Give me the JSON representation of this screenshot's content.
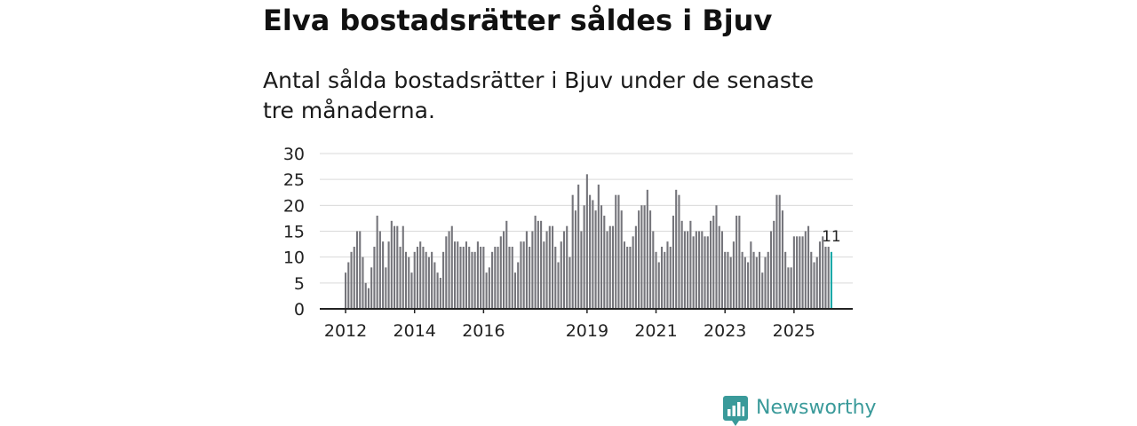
{
  "headline": "Elva bostadsrätter såldes i Bjuv",
  "subtitle": "Antal sålda bostadsrätter i Bjuv under de senaste tre månaderna.",
  "brand": {
    "name": "Newsworthy",
    "icon": "newsworthy-logo-icon",
    "color": "#3a9a9a"
  },
  "colors": {
    "bar": "#75757b",
    "highlight": "#1aa8a8",
    "grid": "#d9d9d9",
    "axis": "#222222"
  },
  "chart_data": {
    "type": "bar",
    "title": "Antal sålda bostadsrätter i Bjuv",
    "xlabel": "",
    "ylabel": "",
    "ylim": [
      0,
      30
    ],
    "yticks": [
      0,
      5,
      10,
      15,
      20,
      25,
      30
    ],
    "x_tick_labels": [
      {
        "label": "2012",
        "index": 0
      },
      {
        "label": "2014",
        "index": 24
      },
      {
        "label": "2016",
        "index": 48
      },
      {
        "label": "2019",
        "index": 84
      },
      {
        "label": "2021",
        "index": 108
      },
      {
        "label": "2023",
        "index": 132
      },
      {
        "label": "2025",
        "index": 156
      }
    ],
    "start": "2012-01",
    "values": [
      7,
      9,
      11,
      12,
      15,
      15,
      10,
      5,
      4,
      8,
      12,
      18,
      15,
      13,
      8,
      13,
      17,
      16,
      16,
      12,
      16,
      11,
      10,
      7,
      11,
      12,
      13,
      12,
      11,
      10,
      11,
      9,
      7,
      6,
      11,
      14,
      15,
      16,
      13,
      13,
      12,
      12,
      13,
      12,
      11,
      11,
      13,
      12,
      12,
      7,
      8,
      11,
      12,
      12,
      14,
      15,
      17,
      12,
      12,
      7,
      9,
      13,
      13,
      15,
      12,
      15,
      18,
      17,
      17,
      13,
      15,
      16,
      16,
      12,
      9,
      13,
      15,
      16,
      10,
      22,
      19,
      24,
      15,
      20,
      26,
      22,
      21,
      19,
      24,
      20,
      18,
      15,
      16,
      16,
      22,
      22,
      19,
      13,
      12,
      12,
      14,
      16,
      19,
      20,
      20,
      23,
      19,
      15,
      11,
      9,
      12,
      11,
      13,
      12,
      18,
      23,
      22,
      17,
      15,
      15,
      17,
      14,
      15,
      15,
      15,
      14,
      14,
      17,
      18,
      20,
      16,
      15,
      11,
      11,
      10,
      13,
      18,
      18,
      11,
      10,
      9,
      13,
      11,
      10,
      11,
      7,
      10,
      11,
      15,
      17,
      22,
      22,
      19,
      11,
      8,
      8,
      14,
      14,
      14,
      14,
      15,
      16,
      11,
      9,
      10,
      13,
      14,
      12,
      12,
      11
    ],
    "highlight_last": true,
    "last_label": "11"
  }
}
